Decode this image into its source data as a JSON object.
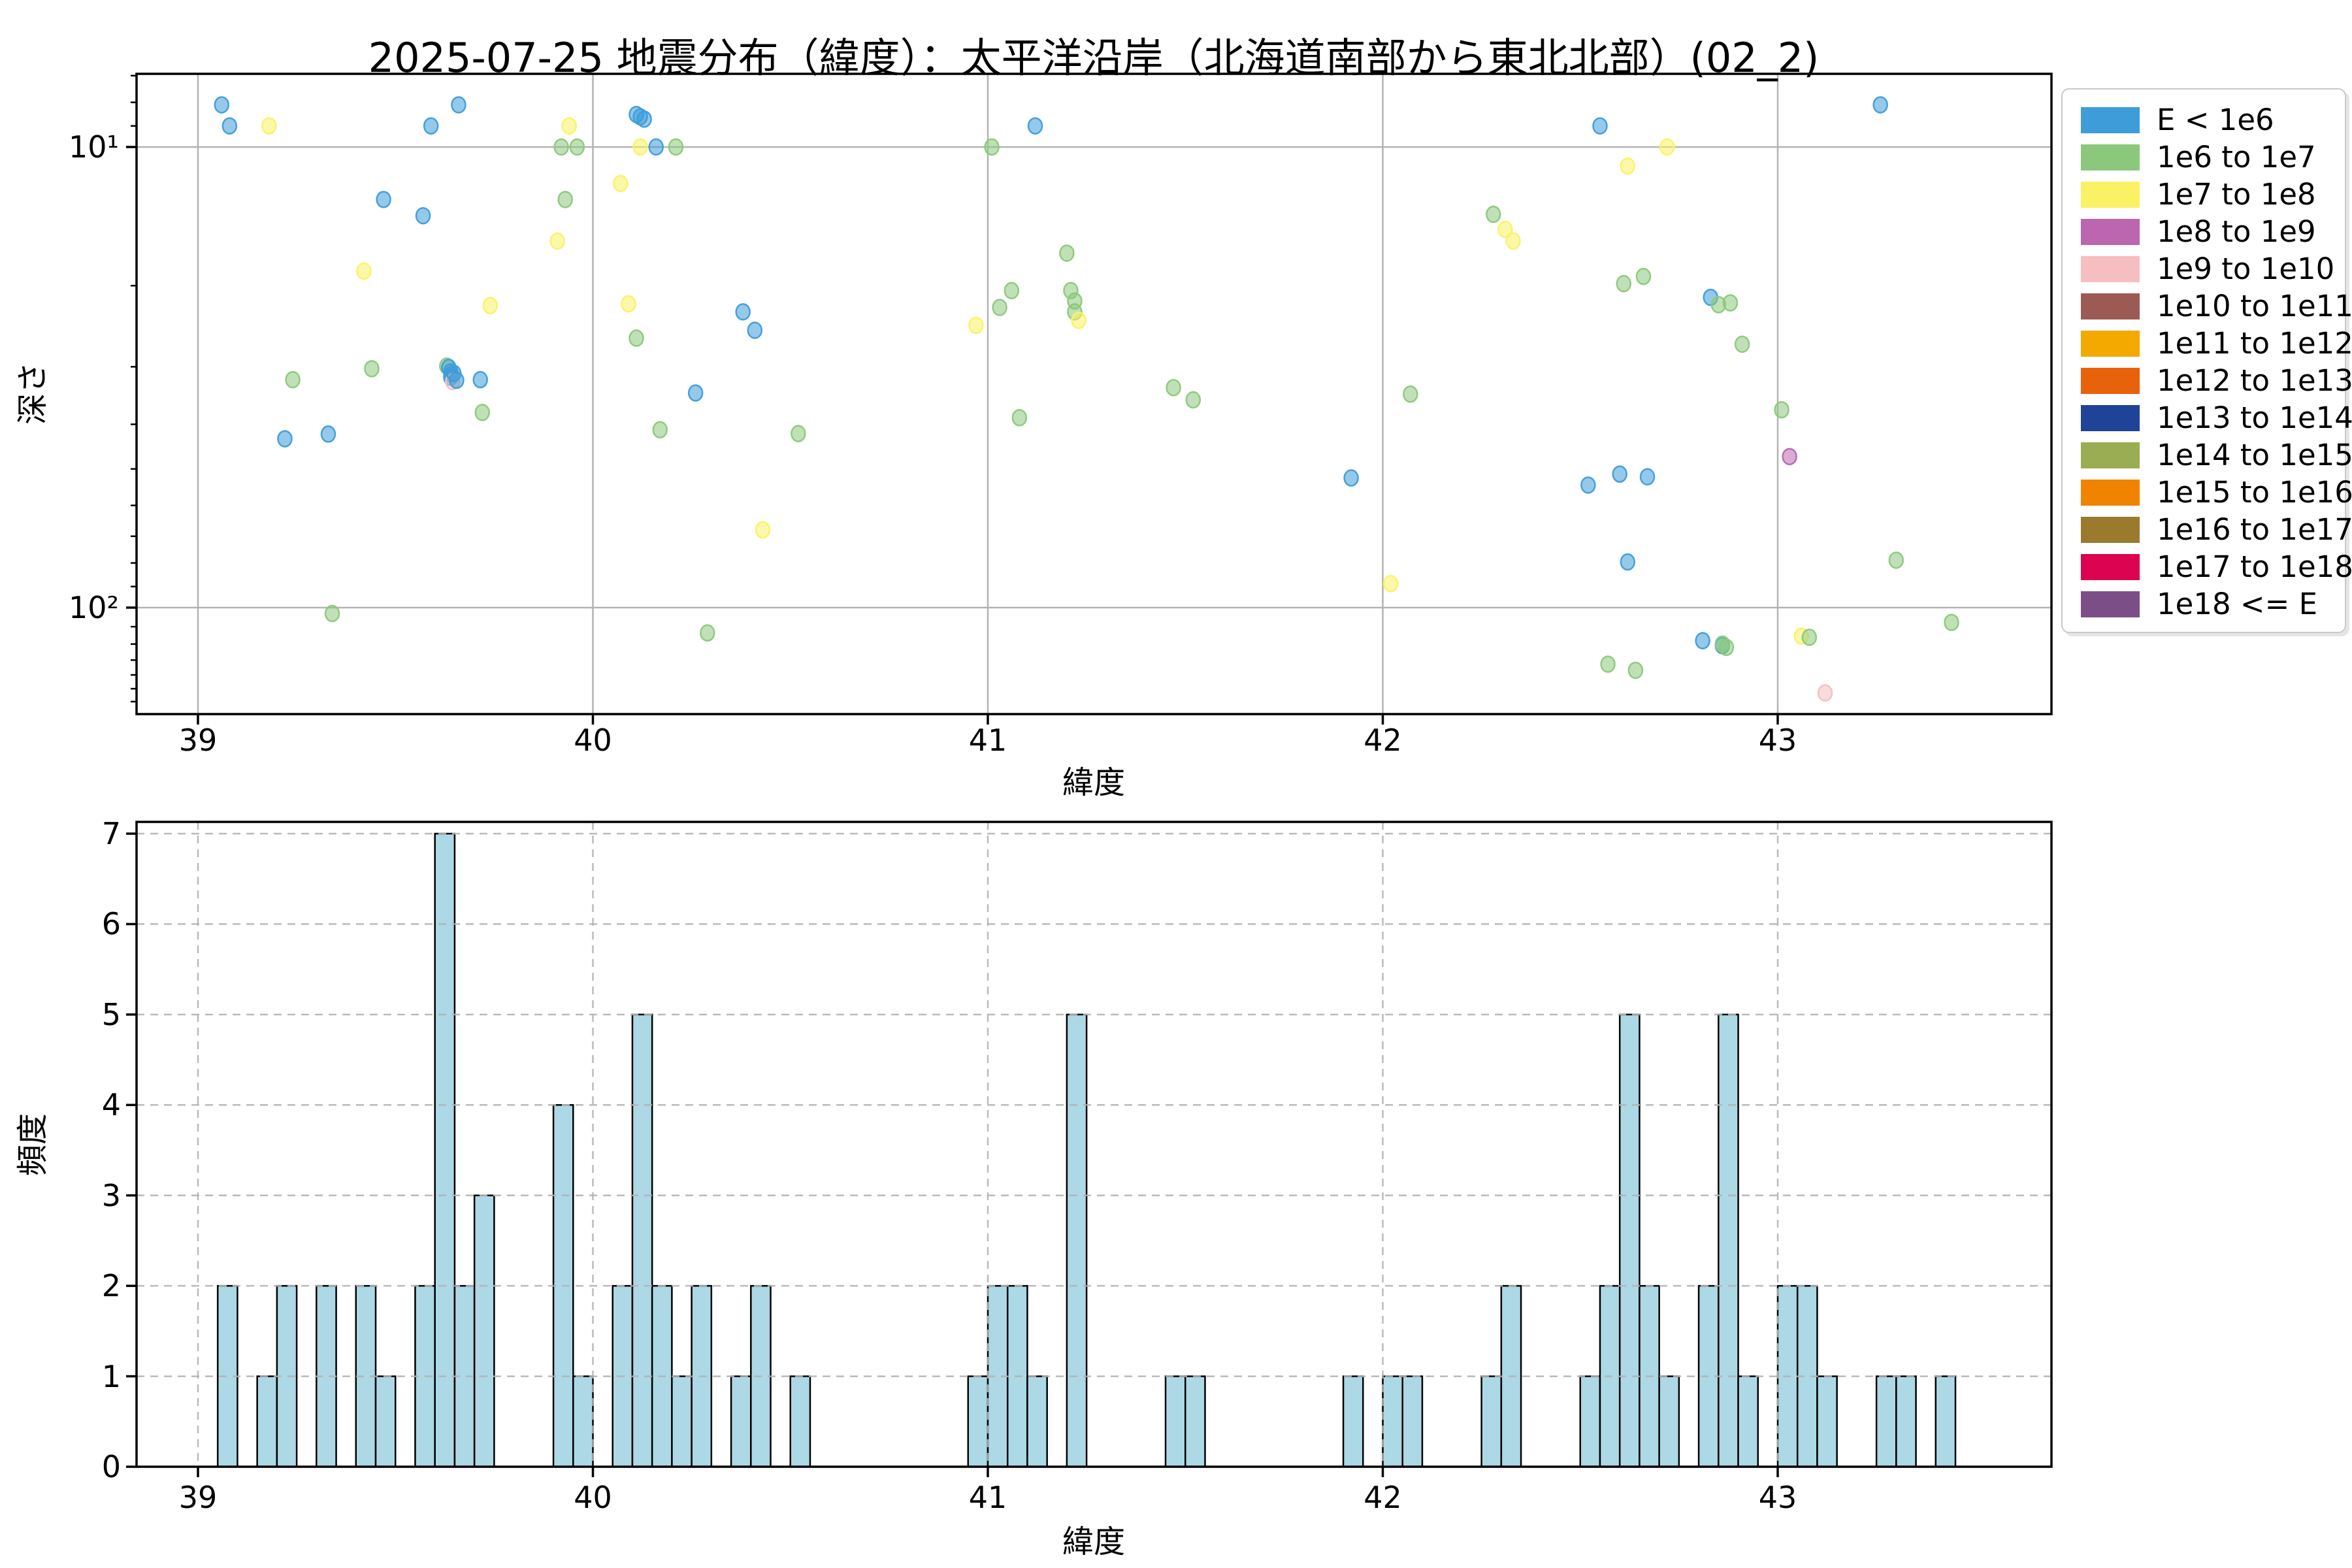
{
  "title": "2025-07-25 地震分布（緯度）：太平洋沿岸（北海道南部から東北北部）(02_2)",
  "legend": {
    "entries": [
      {
        "label": "E < 1e6",
        "color": "#3E9DD9"
      },
      {
        "label": "1e6 to 1e7",
        "color": "#8CC87B"
      },
      {
        "label": "1e7 to 1e8",
        "color": "#FAF264"
      },
      {
        "label": "1e8 to 1e9",
        "color": "#BB66AE"
      },
      {
        "label": "1e9 to 1e10",
        "color": "#F6BEC1"
      },
      {
        "label": "1e10 to 1e11",
        "color": "#9C5A54"
      },
      {
        "label": "1e11 to 1e12",
        "color": "#F4A900"
      },
      {
        "label": "1e12 to 1e13",
        "color": "#E8610B"
      },
      {
        "label": "1e13 to 1e14",
        "color": "#1F4398"
      },
      {
        "label": "1e14 to 1e15",
        "color": "#9AAD52"
      },
      {
        "label": "1e15 to 1e16",
        "color": "#F08300"
      },
      {
        "label": "1e16 to 1e17",
        "color": "#9A7B2D"
      },
      {
        "label": "1e17 to 1e18",
        "color": "#DC0450"
      },
      {
        "label": "1e18 <= E",
        "color": "#7C4E87"
      }
    ]
  },
  "chart_data": [
    {
      "type": "scatter",
      "title": "2025-07-25 地震分布（緯度）：太平洋沿岸（北海道南部から東北北部）(02_2)",
      "xlabel": "緯度",
      "ylabel": "深さ",
      "x_ticks": [
        39,
        40,
        41,
        42,
        43
      ],
      "xlim": [
        38.84,
        43.7
      ],
      "y_scale": "log",
      "y_inverted": true,
      "ylim": [
        6.9,
        170
      ],
      "y_tick_values": [
        10,
        100
      ],
      "y_tick_labels": [
        "10¹",
        "10²"
      ],
      "y_minor_ticks": [
        7,
        8,
        9,
        20,
        30,
        40,
        50,
        60,
        70,
        80,
        90,
        110,
        120,
        130,
        140,
        150,
        160
      ],
      "grid": "solid",
      "legend_position": "outside upper right",
      "point_format": [
        "latitude",
        "depth_km",
        "legend_index"
      ],
      "points": [
        [
          39.06,
          8.1,
          0
        ],
        [
          39.08,
          9.0,
          0
        ],
        [
          39.18,
          9.0,
          2
        ],
        [
          39.22,
          43.0,
          0
        ],
        [
          39.24,
          32.0,
          1
        ],
        [
          39.33,
          42.0,
          0
        ],
        [
          39.34,
          103.0,
          1
        ],
        [
          39.42,
          18.6,
          2
        ],
        [
          39.44,
          30.3,
          1
        ],
        [
          39.47,
          13.0,
          0
        ],
        [
          39.57,
          14.1,
          0
        ],
        [
          39.59,
          9.0,
          0
        ],
        [
          39.63,
          29.9,
          1
        ],
        [
          39.635,
          30.1,
          0
        ],
        [
          39.64,
          30.8,
          0
        ],
        [
          39.64,
          31.6,
          0
        ],
        [
          39.642,
          31.2,
          0
        ],
        [
          39.645,
          32.3,
          4
        ],
        [
          39.648,
          31.0,
          0
        ],
        [
          39.655,
          32.1,
          0
        ],
        [
          39.66,
          8.1,
          0
        ],
        [
          39.715,
          32.0,
          0
        ],
        [
          39.72,
          37.7,
          1
        ],
        [
          39.74,
          22.1,
          2
        ],
        [
          39.91,
          16.0,
          2
        ],
        [
          39.92,
          10.0,
          1
        ],
        [
          39.93,
          13.0,
          1
        ],
        [
          39.94,
          9.0,
          2
        ],
        [
          39.96,
          10.0,
          1
        ],
        [
          40.07,
          12.0,
          2
        ],
        [
          40.09,
          21.9,
          2
        ],
        [
          40.11,
          26.0,
          1
        ],
        [
          40.11,
          8.5,
          0
        ],
        [
          40.12,
          8.6,
          0
        ],
        [
          40.12,
          10.0,
          2
        ],
        [
          40.13,
          8.7,
          0
        ],
        [
          40.16,
          10.0,
          0
        ],
        [
          40.17,
          41.1,
          1
        ],
        [
          40.21,
          10.0,
          1
        ],
        [
          40.26,
          34.2,
          0
        ],
        [
          40.29,
          113.5,
          1
        ],
        [
          40.38,
          22.8,
          0
        ],
        [
          40.41,
          25.0,
          0
        ],
        [
          40.43,
          67.8,
          2
        ],
        [
          40.52,
          41.9,
          1
        ],
        [
          40.97,
          24.4,
          2
        ],
        [
          41.01,
          10.0,
          1
        ],
        [
          41.03,
          22.3,
          1
        ],
        [
          41.06,
          20.5,
          1
        ],
        [
          41.08,
          38.7,
          1
        ],
        [
          41.12,
          9.0,
          0
        ],
        [
          41.2,
          17.0,
          1
        ],
        [
          41.21,
          20.5,
          1
        ],
        [
          41.22,
          21.6,
          1
        ],
        [
          41.22,
          22.8,
          1
        ],
        [
          41.23,
          23.8,
          2
        ],
        [
          41.47,
          33.3,
          1
        ],
        [
          41.52,
          35.4,
          1
        ],
        [
          41.92,
          52.3,
          0
        ],
        [
          42.02,
          88.7,
          2
        ],
        [
          42.07,
          34.4,
          1
        ],
        [
          42.28,
          14.0,
          1
        ],
        [
          42.31,
          15.1,
          2
        ],
        [
          42.33,
          16.0,
          2
        ],
        [
          42.52,
          54.2,
          0
        ],
        [
          42.55,
          9.0,
          0
        ],
        [
          42.57,
          132.7,
          1
        ],
        [
          42.6,
          51.3,
          0
        ],
        [
          42.61,
          19.8,
          1
        ],
        [
          42.62,
          11.0,
          2
        ],
        [
          42.62,
          79.6,
          0
        ],
        [
          42.64,
          136.8,
          1
        ],
        [
          42.66,
          19.1,
          1
        ],
        [
          42.67,
          52.0,
          0
        ],
        [
          42.72,
          10.0,
          2
        ],
        [
          42.81,
          118.0,
          0
        ],
        [
          42.83,
          21.2,
          0
        ],
        [
          42.85,
          22.0,
          1
        ],
        [
          42.86,
          121.0,
          0
        ],
        [
          42.86,
          120.0,
          1
        ],
        [
          42.87,
          122.0,
          1
        ],
        [
          42.88,
          21.8,
          1
        ],
        [
          42.91,
          26.8,
          1
        ],
        [
          43.01,
          37.2,
          1
        ],
        [
          43.03,
          47.0,
          3
        ],
        [
          43.06,
          115.4,
          2
        ],
        [
          43.08,
          116.0,
          1
        ],
        [
          43.12,
          153.2,
          4
        ],
        [
          43.26,
          8.1,
          0
        ],
        [
          43.3,
          78.9,
          1
        ],
        [
          43.44,
          107.7,
          1
        ]
      ]
    },
    {
      "type": "bar",
      "xlabel": "緯度",
      "ylabel": "頻度",
      "x_ticks": [
        39,
        40,
        41,
        42,
        43
      ],
      "xlim": [
        38.84,
        43.7
      ],
      "y_ticks": [
        0,
        1,
        2,
        3,
        4,
        5,
        6,
        7
      ],
      "ylim": [
        0,
        7.3
      ],
      "grid": "dashed",
      "bar_color": "#ADD8E6",
      "bar_edge_color": "#000000",
      "bin_width": 0.05,
      "bin_format": [
        "bin_left_latitude",
        "count"
      ],
      "bins": [
        [
          39.05,
          2
        ],
        [
          39.15,
          1
        ],
        [
          39.2,
          2
        ],
        [
          39.3,
          2
        ],
        [
          39.4,
          2
        ],
        [
          39.45,
          1
        ],
        [
          39.55,
          2
        ],
        [
          39.6,
          7
        ],
        [
          39.65,
          2
        ],
        [
          39.7,
          3
        ],
        [
          39.9,
          4
        ],
        [
          39.95,
          1
        ],
        [
          40.05,
          2
        ],
        [
          40.1,
          5
        ],
        [
          40.15,
          2
        ],
        [
          40.2,
          1
        ],
        [
          40.25,
          2
        ],
        [
          40.35,
          1
        ],
        [
          40.4,
          2
        ],
        [
          40.5,
          1
        ],
        [
          40.95,
          1
        ],
        [
          41.0,
          2
        ],
        [
          41.05,
          2
        ],
        [
          41.1,
          1
        ],
        [
          41.2,
          5
        ],
        [
          41.45,
          1
        ],
        [
          41.5,
          1
        ],
        [
          41.9,
          1
        ],
        [
          42.0,
          1
        ],
        [
          42.05,
          1
        ],
        [
          42.25,
          1
        ],
        [
          42.3,
          2
        ],
        [
          42.5,
          1
        ],
        [
          42.55,
          2
        ],
        [
          42.6,
          5
        ],
        [
          42.65,
          2
        ],
        [
          42.7,
          1
        ],
        [
          42.8,
          2
        ],
        [
          42.85,
          5
        ],
        [
          42.9,
          1
        ],
        [
          43.0,
          2
        ],
        [
          43.05,
          2
        ],
        [
          43.1,
          1
        ],
        [
          43.25,
          1
        ],
        [
          43.3,
          1
        ],
        [
          43.4,
          1
        ]
      ]
    }
  ]
}
